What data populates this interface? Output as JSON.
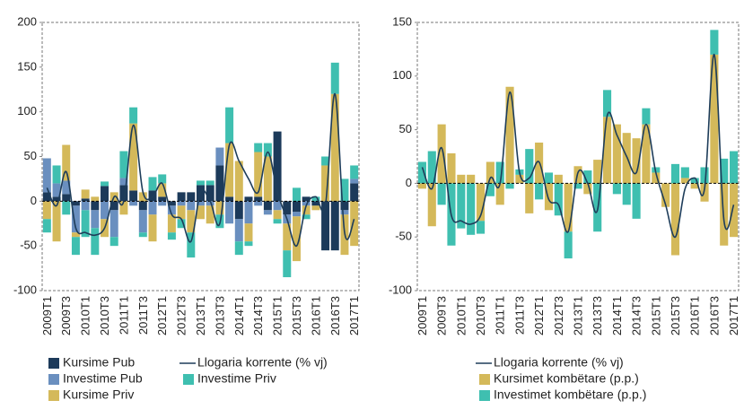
{
  "chart_data": [
    {
      "type": "bar",
      "categories": [
        "2009T1",
        null,
        "2009T3",
        null,
        "2010T1",
        null,
        "2010T3",
        null,
        "2011T1",
        null,
        "2011T3",
        null,
        "2012T1",
        null,
        "2012T3",
        null,
        "2013T1",
        null,
        "2013T3",
        null,
        "2014T1",
        null,
        "2014T3",
        null,
        "2015T1",
        null,
        "2015T3",
        null,
        "2016T1",
        null,
        "2016T3",
        null,
        "2017T1"
      ],
      "ylim": [
        -100,
        200
      ],
      "yticks": [
        -100,
        -50,
        0,
        50,
        100,
        150,
        200
      ],
      "series": [
        {
          "name": "Kursime Pub",
          "type": "bar",
          "color": "#1c3a5a",
          "values": [
            10,
            5,
            8,
            -5,
            3,
            -10,
            17,
            -10,
            18,
            12,
            -10,
            12,
            5,
            -5,
            10,
            10,
            18,
            18,
            40,
            5,
            -20,
            5,
            5,
            -10,
            78,
            -15,
            -12,
            5,
            -5,
            -55,
            -55,
            -10,
            20
          ]
        },
        {
          "name": "Investime Pub",
          "type": "bar",
          "color": "#6a8fbf",
          "values": [
            38,
            15,
            15,
            -30,
            -10,
            -20,
            -20,
            -30,
            8,
            -5,
            -25,
            -15,
            -5,
            -10,
            -5,
            -10,
            -5,
            -5,
            20,
            -25,
            -25,
            -25,
            -5,
            -5,
            -10,
            -10,
            -5,
            -5,
            0,
            0,
            0,
            -5,
            5
          ]
        },
        {
          "name": "Kursime Priv",
          "type": "bar",
          "color": "#d4b95a",
          "values": [
            -20,
            -45,
            40,
            -5,
            10,
            5,
            -20,
            10,
            -15,
            75,
            10,
            -30,
            15,
            -20,
            -15,
            -25,
            -15,
            -20,
            -15,
            60,
            45,
            -20,
            50,
            50,
            -10,
            -30,
            -50,
            -10,
            -5,
            40,
            120,
            -45,
            -50
          ]
        },
        {
          "name": "Investime Priv",
          "type": "bar",
          "color": "#3fbfb0",
          "values": [
            -15,
            20,
            -15,
            -20,
            -30,
            -30,
            5,
            -10,
            30,
            18,
            -5,
            15,
            10,
            -8,
            -10,
            -28,
            5,
            5,
            -15,
            40,
            -15,
            -5,
            10,
            15,
            -5,
            -30,
            15,
            -5,
            5,
            10,
            35,
            25,
            15
          ]
        },
        {
          "name": "Llogaria korrente (% vj)",
          "type": "line",
          "color": "#1e3d5a",
          "values": [
            15,
            -5,
            33,
            -30,
            -35,
            -38,
            -30,
            5,
            0,
            85,
            10,
            5,
            20,
            -15,
            -20,
            -45,
            10,
            0,
            -25,
            63,
            45,
            25,
            10,
            55,
            10,
            -20,
            -50,
            -5,
            5,
            -5,
            120,
            -35,
            -20
          ]
        }
      ]
    },
    {
      "type": "bar",
      "categories": [
        "2009T1",
        null,
        "2009T3",
        null,
        "2010T1",
        null,
        "2010T3",
        null,
        "2011T1",
        null,
        "2011T3",
        null,
        "2012T1",
        null,
        "2012T3",
        null,
        "2013T1",
        null,
        "2013T3",
        null,
        "2014T1",
        null,
        "2014T3",
        null,
        "2015T1",
        null,
        "2015T3",
        null,
        "2016T1",
        null,
        "2016T3",
        null,
        "2017T1"
      ],
      "ylim": [
        -100,
        150
      ],
      "yticks": [
        -100,
        -50,
        0,
        50,
        100,
        150
      ],
      "series": [
        {
          "name": "Kursimet kombëtare (p.p.)",
          "type": "bar",
          "color": "#d4b95a",
          "values": [
            -5,
            -40,
            55,
            28,
            8,
            8,
            -35,
            20,
            -20,
            90,
            8,
            -28,
            38,
            -25,
            8,
            -45,
            16,
            -10,
            22,
            62,
            55,
            47,
            42,
            55,
            10,
            -22,
            -67,
            5,
            -5,
            -17,
            120,
            -58,
            -50
          ]
        },
        {
          "name": "Investimet kombëtare (p.p.)",
          "type": "bar",
          "color": "#3fbfb0",
          "values": [
            20,
            30,
            -20,
            -58,
            -42,
            -48,
            -12,
            -12,
            20,
            -5,
            5,
            32,
            -15,
            10,
            -30,
            -25,
            -5,
            12,
            -45,
            25,
            -10,
            -20,
            -33,
            15,
            5,
            0,
            18,
            10,
            5,
            15,
            23,
            23,
            30
          ]
        },
        {
          "name": "Llogaria korrente (% vj)",
          "type": "line",
          "color": "#1e3d5a",
          "values": [
            15,
            -5,
            33,
            -30,
            -35,
            -38,
            -30,
            5,
            0,
            85,
            10,
            5,
            20,
            -15,
            -20,
            -45,
            10,
            0,
            -25,
            63,
            45,
            25,
            10,
            55,
            10,
            -20,
            -50,
            -5,
            5,
            -5,
            120,
            -35,
            -20
          ]
        }
      ]
    }
  ]
}
